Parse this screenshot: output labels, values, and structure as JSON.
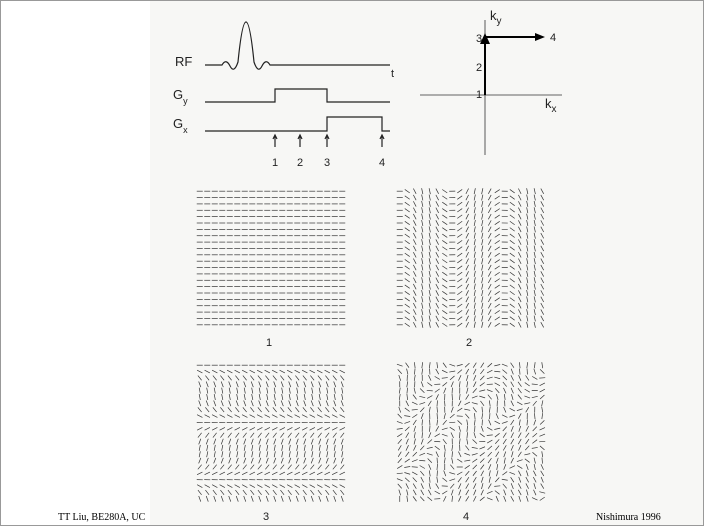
{
  "figure": {
    "pulse_sequence": {
      "rf_label": "RF",
      "time_label": "t",
      "gy_label": {
        "base": "G",
        "sub": "y"
      },
      "gx_label": {
        "base": "G",
        "sub": "x"
      },
      "time_points": [
        "1",
        "2",
        "3",
        "4"
      ]
    },
    "kspace": {
      "ky": {
        "base": "k",
        "sub": "y"
      },
      "kx": {
        "base": "k",
        "sub": "x"
      },
      "points": [
        "1",
        "2",
        "3",
        "4"
      ]
    },
    "panels": [
      "1",
      "2",
      "3",
      "4"
    ]
  },
  "footer": {
    "left": "TT Liu, BE280A, UC",
    "right": "Nishimura 1996"
  }
}
